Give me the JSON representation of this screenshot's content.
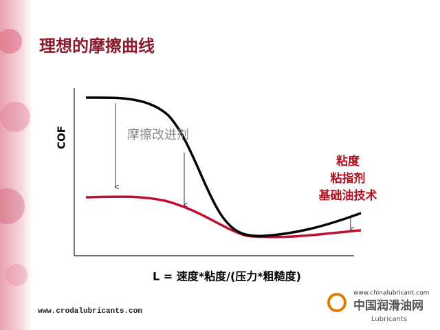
{
  "title": "理想的摩擦曲线",
  "diagram": {
    "y_axis_label": "COF",
    "x_axis_label": "L = 速度*粘度/(压力*粗糙度)",
    "annotations": [
      "摩擦改进剂",
      "粘度",
      "粘指剂",
      "基础油技术"
    ]
  },
  "footer": {
    "url": "www.crodalubricants.com"
  },
  "logo": {
    "url": "www.chinalubricant.com",
    "name": "中国润滑油网",
    "tagline": "Lubricants"
  }
}
